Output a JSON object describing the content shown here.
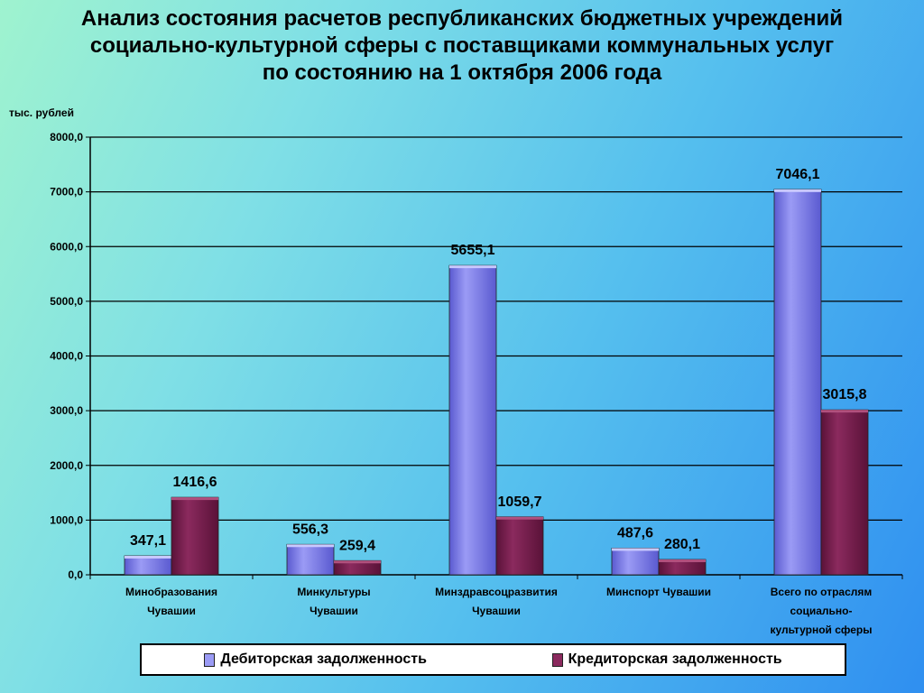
{
  "title_lines": [
    "Анализ состояния расчетов республиканских бюджетных учреждений",
    "социально-культурной сферы с поставщиками коммунальных услуг",
    "по состоянию на 1 октября 2006 года"
  ],
  "colors": {
    "series_1": "#9b9bf5",
    "series_1_dark": "#5a5ad0",
    "series_2": "#8b2a5e",
    "series_2_dark": "#5a1238"
  },
  "chart_data": {
    "type": "bar",
    "title": "Анализ состояния расчетов республиканских бюджетных учреждений социально-культурной сферы с поставщиками коммунальных услуг по состоянию на 1 октября 2006 года",
    "ylabel": "тыс. рублей",
    "xlabel": "",
    "ylim": [
      0,
      8000
    ],
    "yticks": [
      0,
      1000,
      2000,
      3000,
      4000,
      5000,
      6000,
      7000,
      8000
    ],
    "ytick_labels": [
      "0,0",
      "1000,0",
      "2000,0",
      "3000,0",
      "4000,0",
      "5000,0",
      "6000,0",
      "7000,0",
      "8000,0"
    ],
    "grid": true,
    "legend_position": "bottom",
    "categories": [
      [
        "Минобразования",
        "Чувашии"
      ],
      [
        "Минкультуры",
        "Чувашии"
      ],
      [
        "Минздравсоцразвития",
        "Чувашии"
      ],
      [
        "Минспорт Чувашии"
      ],
      [
        "Всего  по отраслям",
        "социально-",
        "культурной сферы"
      ]
    ],
    "series": [
      {
        "name": "Дебиторская задолженность",
        "values": [
          347.1,
          556.3,
          5655.1,
          487.6,
          7046.1
        ],
        "labels": [
          "347,1",
          "556,3",
          "5655,1",
          "487,6",
          "7046,1"
        ]
      },
      {
        "name": "Кредиторская задолженность",
        "values": [
          1416.6,
          259.4,
          1059.7,
          280.1,
          3015.8
        ],
        "labels": [
          "1416,6",
          "259,4",
          "1059,7",
          "280,1",
          "3015,8"
        ]
      }
    ]
  }
}
